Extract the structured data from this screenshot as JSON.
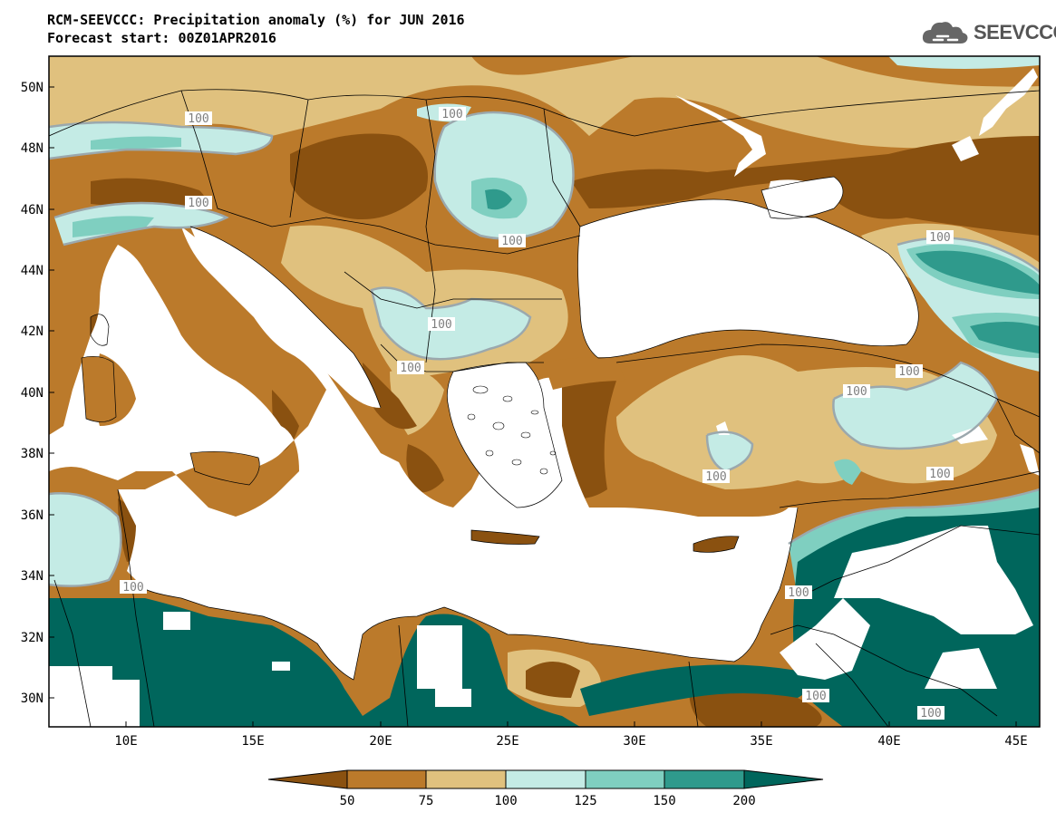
{
  "header": {
    "title": "RCM-SEEVCCC: Precipitation anomaly (%) for JUN 2016",
    "subtitle": "Forecast start: 00Z01APR2016"
  },
  "logo": {
    "text": "SEEVCCC",
    "icon": "cloud-icon"
  },
  "map": {
    "lon_ticks": [
      "10E",
      "15E",
      "20E",
      "25E",
      "30E",
      "35E",
      "40E",
      "45E"
    ],
    "lat_ticks": [
      "50N",
      "48N",
      "46N",
      "44N",
      "42N",
      "40N",
      "38N",
      "36N",
      "34N",
      "32N",
      "30N"
    ],
    "contour_labels": [
      "100",
      "100",
      "100",
      "100",
      "100",
      "100",
      "100",
      "100",
      "100",
      "100",
      "100",
      "100",
      "100",
      "100"
    ]
  },
  "legend": {
    "colors": [
      "#8a5110",
      "#bb7a2b",
      "#e0c17e",
      "#c4ebe5",
      "#7fcfc0",
      "#2f9a8c",
      "#00665c"
    ],
    "labels": [
      "50",
      "75",
      "100",
      "125",
      "150",
      "200"
    ]
  },
  "palette": {
    "dry_strong": "#8a5110",
    "dry": "#bb7a2b",
    "dry_light": "#e0c17e",
    "wet_light": "#c4ebe5",
    "wet": "#7fcfc0",
    "wet_strong": "#2f9a8c",
    "wet_extreme": "#00665c",
    "sea": "#ffffff"
  }
}
